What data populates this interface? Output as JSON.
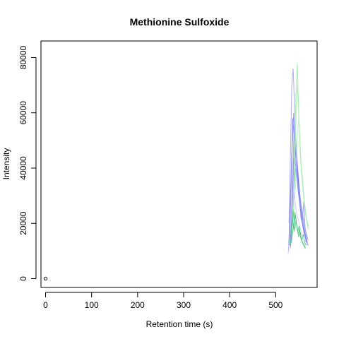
{
  "chart_data": {
    "type": "line",
    "title": "Methionine Sulfoxide",
    "xlabel": "Retention time (s)",
    "ylabel": "Intensity",
    "xlim": [
      -10,
      590
    ],
    "ylim": [
      -3200,
      86000
    ],
    "x_ticks": [
      0,
      100,
      200,
      300,
      400,
      500
    ],
    "y_ticks": [
      0,
      20000,
      40000,
      60000,
      80000
    ],
    "x_tick_labels": [
      "0",
      "100",
      "200",
      "300",
      "400",
      "500"
    ],
    "y_tick_labels": [
      "0",
      "20000",
      "40000",
      "60000",
      "80000"
    ],
    "grid": false,
    "legend": "none",
    "reference_point": {
      "x": 0,
      "y": 0
    },
    "series": [
      {
        "color": "#7b7bea",
        "x": [
          528,
          531,
          534,
          537,
          540,
          543,
          546,
          549,
          552,
          555,
          558,
          561,
          564,
          567
        ],
        "y": [
          10000,
          25000,
          40000,
          58000,
          52000,
          45000,
          38000,
          32000,
          28000,
          22000,
          20000,
          17000,
          15000,
          13000
        ]
      },
      {
        "color": "#8a8aef",
        "x": [
          530,
          533,
          536,
          539,
          542,
          545,
          548,
          551,
          554,
          557,
          560,
          563,
          566
        ],
        "y": [
          14000,
          30000,
          48000,
          60000,
          50000,
          42000,
          36000,
          30000,
          25000,
          21000,
          18000,
          16000,
          14000
        ]
      },
      {
        "color": "#a0a0f2",
        "x": [
          529,
          532,
          535,
          538,
          541,
          544,
          547,
          550,
          553,
          556,
          559,
          562,
          565,
          568
        ],
        "y": [
          20000,
          45000,
          70000,
          76000,
          62000,
          50000,
          42000,
          36000,
          30000,
          26000,
          23000,
          20000,
          17000,
          15000
        ]
      },
      {
        "color": "#9494f0",
        "x": [
          531,
          534,
          537,
          540,
          543,
          546,
          549,
          552,
          555,
          558,
          561,
          564,
          567,
          570
        ],
        "y": [
          12000,
          24000,
          36000,
          55000,
          48000,
          40000,
          34000,
          29000,
          24000,
          21000,
          28000,
          18000,
          16000,
          14000
        ]
      },
      {
        "color": "#7070e6",
        "x": [
          533,
          536,
          539,
          542,
          545,
          548,
          551,
          554,
          557,
          560,
          563,
          566,
          569
        ],
        "y": [
          15000,
          28000,
          42000,
          48000,
          44000,
          38000,
          32000,
          27000,
          23000,
          20000,
          17000,
          15000,
          13000
        ]
      },
      {
        "color": "#8c8ce8",
        "x": [
          532,
          535,
          538,
          541,
          544,
          547,
          550,
          553,
          556,
          559,
          562,
          565,
          568,
          571
        ],
        "y": [
          11000,
          18000,
          30000,
          44000,
          40000,
          35000,
          30000,
          26000,
          22000,
          19000,
          17000,
          15000,
          13000,
          12000
        ]
      },
      {
        "color": "#7a9af0",
        "x": [
          534,
          537,
          540,
          543,
          546,
          549,
          552,
          555,
          558,
          561,
          564,
          567
        ],
        "y": [
          13000,
          22000,
          33000,
          40000,
          37000,
          33000,
          29000,
          25000,
          22000,
          19000,
          16000,
          14000
        ]
      },
      {
        "color": "#9ae6a6",
        "x": [
          535,
          538,
          541,
          544,
          547,
          550,
          553,
          556,
          559,
          562,
          565,
          568,
          571
        ],
        "y": [
          16000,
          30000,
          50000,
          66000,
          78000,
          60000,
          48000,
          40000,
          34000,
          28000,
          24000,
          20000,
          18000
        ]
      },
      {
        "color": "#a8ecb2",
        "x": [
          536,
          539,
          542,
          545,
          548,
          551,
          554,
          557,
          560,
          563,
          566,
          569,
          572
        ],
        "y": [
          18000,
          32000,
          45000,
          62000,
          70000,
          56000,
          45000,
          38000,
          32000,
          27000,
          23000,
          20000,
          19000
        ]
      },
      {
        "color": "#b5efbe",
        "x": [
          538,
          541,
          544,
          547,
          550,
          553,
          556,
          559,
          562,
          565,
          568,
          571
        ],
        "y": [
          17000,
          26000,
          38000,
          52000,
          58000,
          46000,
          38000,
          32000,
          27000,
          23000,
          21000,
          19000
        ]
      },
      {
        "color": "#3fbf72",
        "x": [
          530,
          533,
          536,
          539,
          542,
          545,
          548,
          551,
          554,
          557,
          560,
          563,
          566
        ],
        "y": [
          12000,
          16000,
          22000,
          18000,
          24000,
          20000,
          17000,
          19000,
          15000,
          14000,
          16000,
          13000,
          12000
        ]
      },
      {
        "color": "#5ac987",
        "x": [
          532,
          535,
          538,
          541,
          544,
          547,
          550,
          553,
          556,
          559,
          562,
          565
        ],
        "y": [
          14000,
          19000,
          25000,
          17000,
          21000,
          18000,
          15000,
          17000,
          14000,
          13000,
          12000,
          11000
        ]
      },
      {
        "color": "#4cc480",
        "x": [
          534,
          537,
          540,
          543,
          546,
          549,
          552,
          555,
          558,
          561,
          564
        ],
        "y": [
          13000,
          17000,
          20000,
          23000,
          19000,
          16000,
          18000,
          15000,
          13000,
          12000,
          11000
        ]
      },
      {
        "color": "#c8c8f6",
        "x": [
          527,
          530,
          533,
          536,
          539,
          542,
          545,
          548,
          551,
          554,
          557,
          560,
          563,
          566,
          569
        ],
        "y": [
          9000,
          14000,
          20000,
          26000,
          32000,
          28000,
          24000,
          22000,
          20000,
          18000,
          16000,
          15000,
          14000,
          13000,
          12000
        ]
      }
    ]
  }
}
